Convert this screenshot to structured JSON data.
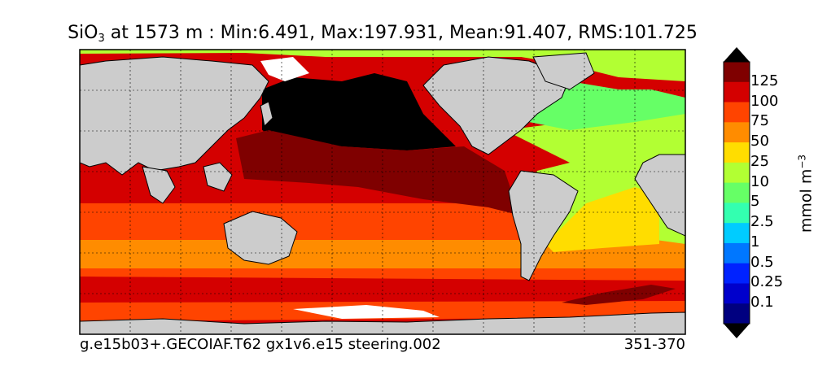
{
  "title": {
    "variable": "SiO",
    "subscript": "3",
    "rest": " at 1573 m : Min:6.491, Max:197.931, Mean:91.407, RMS:101.725"
  },
  "footer": {
    "left": "g.e15b03+.GECOIAF.T62 gx1v6.e15 steering.002",
    "right": "351-370"
  },
  "colorbar": {
    "label_base": "mmol m",
    "label_sup": "−3",
    "ticks": [
      "125",
      "100",
      "75",
      "50",
      "25",
      "10",
      "5",
      "2.5",
      "1",
      "0.5",
      "0.25",
      "0.1"
    ],
    "colors_top_to_bottom": [
      "#7f0000",
      "#d40000",
      "#ff4400",
      "#ff8c00",
      "#ffdd00",
      "#b2ff33",
      "#66ff66",
      "#33ffb0",
      "#00ccff",
      "#0077ff",
      "#0022ff",
      "#0000cc",
      "#000080"
    ],
    "over_color": "#000000",
    "under_color": "#000000"
  },
  "colors": {
    "land": "#cccccc",
    "ice": "#ffffff"
  },
  "chart_data": {
    "type": "heatmap",
    "variable": "SiO3",
    "depth": "1573 m",
    "min": 6.491,
    "max": 197.931,
    "mean": 91.407,
    "rms": 101.725,
    "units": "mmol m-3",
    "levels": [
      0.1,
      0.25,
      0.5,
      1,
      2.5,
      5,
      10,
      25,
      50,
      75,
      100,
      125
    ]
  }
}
